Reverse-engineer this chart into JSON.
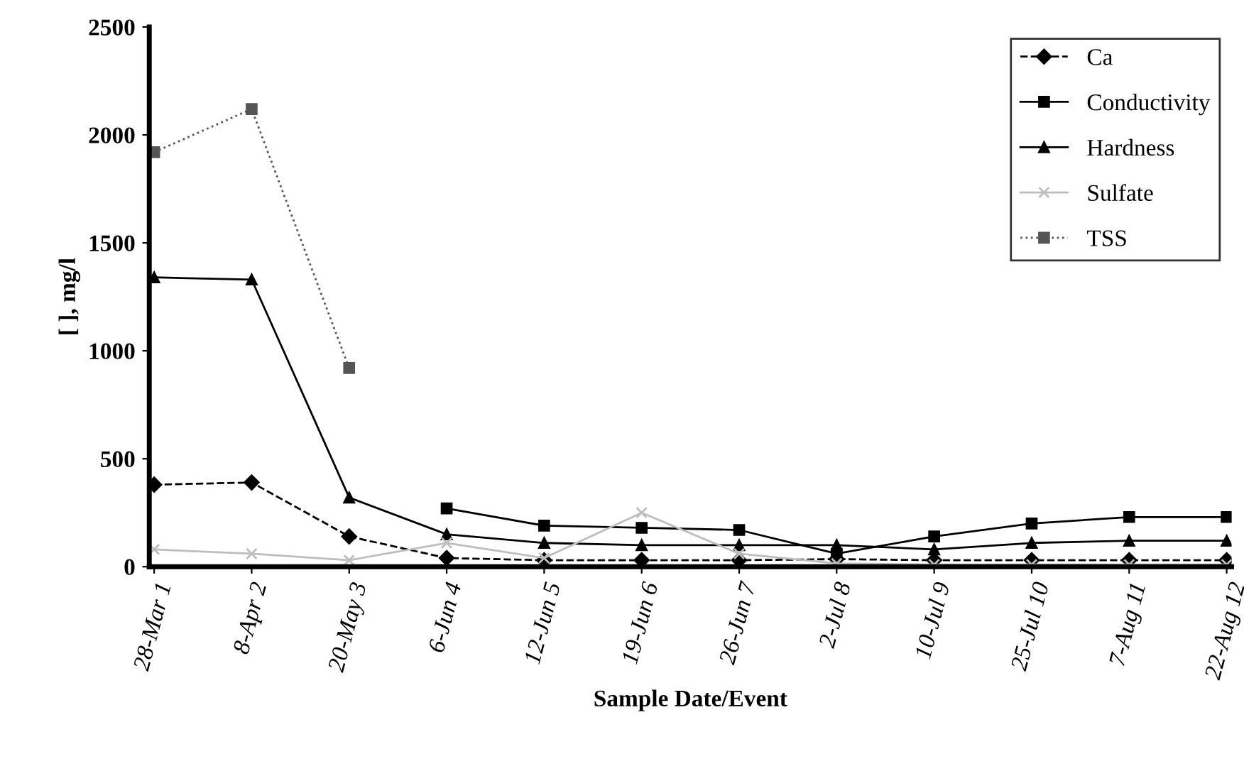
{
  "chart_data": {
    "type": "line",
    "xlabel": "Sample Date/Event",
    "ylabel": "[ ], mg/l",
    "categories": [
      "28-Mar 1",
      "8-Apr 2",
      "20-May 3",
      "6-Jun 4",
      "12-Jun 5",
      "19-Jun 6",
      "26-Jun 7",
      "2-Jul 8",
      "10-Jul 9",
      "25-Jul 10",
      "7-Aug 11",
      "22-Aug 12"
    ],
    "series": [
      {
        "name": "Ca",
        "color": "#000000",
        "marker": "diamond",
        "line_style": "dashed",
        "values": [
          380,
          390,
          140,
          40,
          30,
          30,
          30,
          35,
          30,
          30,
          30,
          30
        ]
      },
      {
        "name": "Conductivity",
        "color": "#000000",
        "marker": "square",
        "line_style": "solid",
        "values": [
          null,
          null,
          null,
          270,
          190,
          180,
          170,
          60,
          140,
          200,
          230,
          230
        ]
      },
      {
        "name": "Hardness",
        "color": "#000000",
        "marker": "triangle",
        "line_style": "solid",
        "values": [
          1340,
          1330,
          320,
          150,
          110,
          100,
          100,
          100,
          80,
          110,
          120,
          120
        ]
      },
      {
        "name": "Sulfate",
        "color": "#bdbdbd",
        "marker": "cross",
        "line_style": "solid",
        "values": [
          80,
          60,
          30,
          110,
          40,
          250,
          60,
          15,
          10,
          10,
          10,
          10
        ]
      },
      {
        "name": "TSS",
        "color": "#555555",
        "marker": "square",
        "line_style": "dotted",
        "values": [
          1920,
          2120,
          920,
          null,
          null,
          null,
          null,
          null,
          null,
          null,
          null,
          null
        ]
      }
    ],
    "ylim": [
      0,
      2500
    ],
    "yticks": [
      0,
      500,
      1000,
      1500,
      2000,
      2500
    ],
    "grid": false,
    "legend": "top right"
  }
}
